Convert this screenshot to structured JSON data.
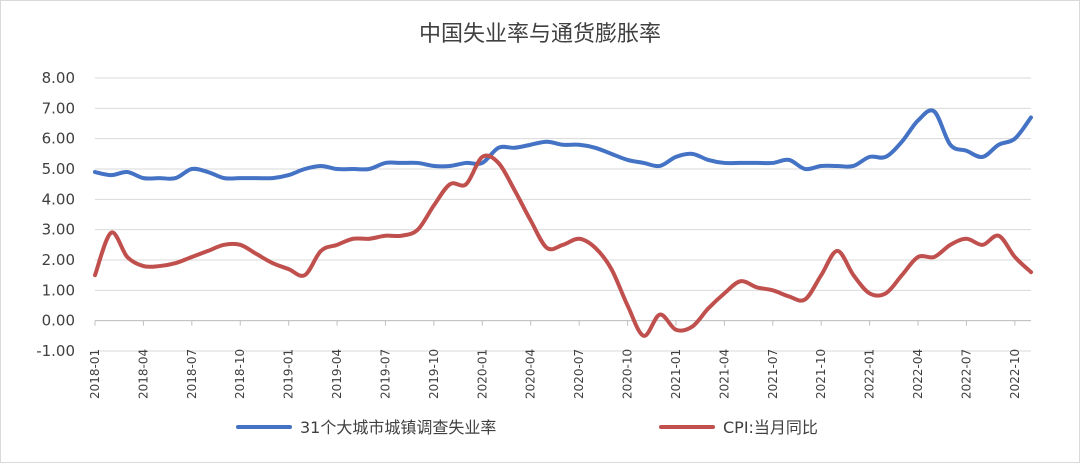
{
  "chart_data": {
    "type": "line",
    "title": "中国失业率与通货膨胀率",
    "xlabel": "",
    "ylabel": "",
    "ylim": [
      -1.0,
      8.0
    ],
    "yticks": [
      "8.00",
      "7.00",
      "6.00",
      "5.00",
      "4.00",
      "3.00",
      "2.00",
      "1.00",
      "0.00",
      "-1.00"
    ],
    "yticks_values": [
      8,
      7,
      6,
      5,
      4,
      3,
      2,
      1,
      0,
      -1
    ],
    "xticks": [
      "2018-01",
      "2018-04",
      "2018-07",
      "2018-10",
      "2019-01",
      "2019-04",
      "2019-07",
      "2019-10",
      "2020-01",
      "2020-04",
      "2020-07",
      "2020-10",
      "2021-01",
      "2021-04",
      "2021-07",
      "2021-10",
      "2022-01",
      "2022-04",
      "2022-07",
      "2022-10"
    ],
    "xticks_month_index": [
      0,
      3,
      6,
      9,
      12,
      15,
      18,
      21,
      24,
      27,
      30,
      33,
      36,
      39,
      42,
      45,
      48,
      51,
      54,
      57
    ],
    "x_start": "2018-01",
    "x_end": "2022-11",
    "grid": true,
    "legend_position": "bottom",
    "series": [
      {
        "name": "31个大城市城镇调查失业率",
        "color": "#4472c4",
        "values": [
          4.9,
          4.8,
          4.9,
          4.7,
          4.7,
          4.7,
          5.0,
          4.9,
          4.7,
          4.7,
          4.7,
          4.7,
          4.8,
          5.0,
          5.1,
          5.0,
          5.0,
          5.0,
          5.2,
          5.2,
          5.2,
          5.1,
          5.1,
          5.2,
          5.2,
          5.7,
          5.7,
          5.8,
          5.9,
          5.8,
          5.8,
          5.7,
          5.5,
          5.3,
          5.2,
          5.1,
          5.4,
          5.5,
          5.3,
          5.2,
          5.2,
          5.2,
          5.2,
          5.3,
          5.0,
          5.1,
          5.1,
          5.1,
          5.4,
          5.4,
          5.9,
          6.6,
          6.9,
          5.8,
          5.6,
          5.4,
          5.8,
          6.0,
          6.7
        ]
      },
      {
        "name": "CPI:当月同比",
        "color": "#c0504d",
        "values": [
          1.5,
          2.9,
          2.1,
          1.8,
          1.8,
          1.9,
          2.1,
          2.3,
          2.5,
          2.5,
          2.2,
          1.9,
          1.7,
          1.5,
          2.3,
          2.5,
          2.7,
          2.7,
          2.8,
          2.8,
          3.0,
          3.8,
          4.5,
          4.5,
          5.4,
          5.2,
          4.3,
          3.3,
          2.4,
          2.5,
          2.7,
          2.4,
          1.7,
          0.5,
          -0.5,
          0.2,
          -0.3,
          -0.2,
          0.4,
          0.9,
          1.3,
          1.1,
          1.0,
          0.8,
          0.7,
          1.5,
          2.3,
          1.5,
          0.9,
          0.9,
          1.5,
          2.1,
          2.1,
          2.5,
          2.7,
          2.5,
          2.8,
          2.1,
          1.6
        ]
      }
    ]
  }
}
